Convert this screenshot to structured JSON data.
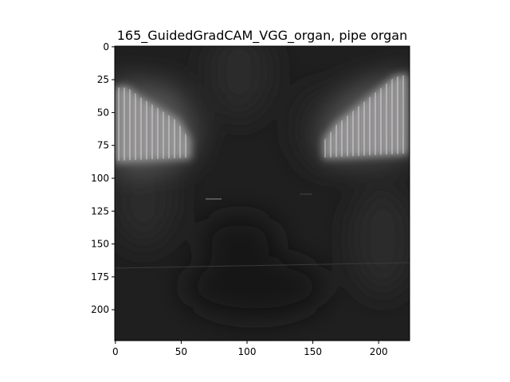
{
  "title": "165_GuidedGradCAM_VGG_organ, pipe organ",
  "axes": {
    "x_ticks": [
      0,
      50,
      100,
      150,
      200
    ],
    "y_ticks": [
      0,
      25,
      50,
      75,
      100,
      125,
      150,
      175,
      200
    ],
    "x_range": [
      -0.5,
      223.5
    ],
    "y_range": [
      -0.5,
      223.5
    ],
    "y_inverted": true
  },
  "image": {
    "description_colors": {
      "background": "#1c1c1c",
      "highlight": "#bdbdbd"
    }
  }
}
